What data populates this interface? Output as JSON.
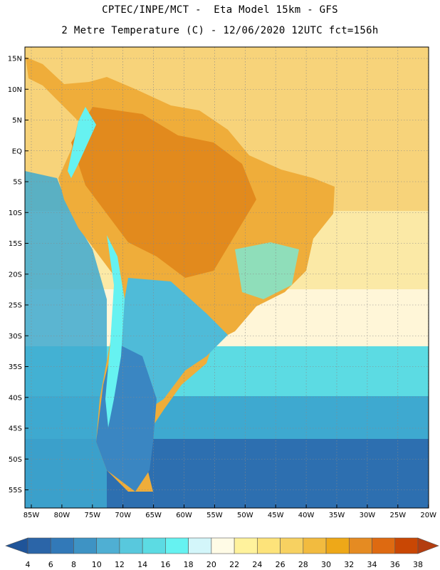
{
  "title_line1": "CPTEC/INPE/MCT -  Eta Model 15km - GFS",
  "title_line2": "2 Metre Temperature (C) - 12/06/2020 12UTC fct=156h",
  "lat_labels": [
    "15N",
    "10N",
    "5N",
    "EQ",
    "5S",
    "10S",
    "15S",
    "20S",
    "25S",
    "30S",
    "35S",
    "40S",
    "45S",
    "50S",
    "55S"
  ],
  "lon_labels": [
    "85W",
    "80W",
    "75W",
    "70W",
    "65W",
    "60W",
    "55W",
    "50W",
    "45W",
    "40W",
    "35W",
    "30W",
    "25W",
    "20W"
  ],
  "colorbar": {
    "labels": [
      "4",
      "6",
      "8",
      "10",
      "12",
      "14",
      "16",
      "18",
      "20",
      "22",
      "24",
      "26",
      "28",
      "30",
      "32",
      "34",
      "36",
      "38"
    ],
    "colors": [
      "#2b65a8",
      "#3279b8",
      "#3e93c4",
      "#4fafd3",
      "#58c8dd",
      "#5cdbe3",
      "#66f2f1",
      "#d3f6fa",
      "#fffbe6",
      "#fff29c",
      "#fde37a",
      "#f7d161",
      "#f2bb3f",
      "#eea818",
      "#e58b22",
      "#de6a11",
      "#c94704"
    ],
    "under_color": "#1f5499",
    "over_color": "#b33d10"
  },
  "colors": {
    "ocean_north": "#f7d37a",
    "ocean_tropic": "#fbe9a6",
    "ocean_subtrop": "#fff6d8",
    "ocean_mid": "#5cdbe3",
    "ocean_cool": "#3ea9d0",
    "ocean_south": "#2d6fb0",
    "land_hot": "#e28a1d",
    "land_warm": "#efad3a",
    "andes": "#66f2f1",
    "patagonia": "#3a86c2",
    "pampas": "#4fbbd8"
  }
}
